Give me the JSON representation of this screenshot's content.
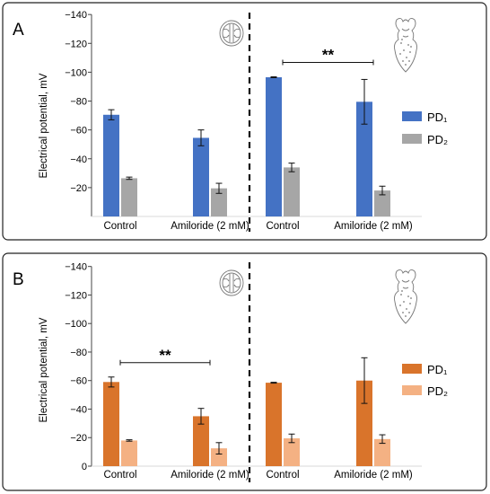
{
  "chart_data": [
    {
      "type": "bar",
      "panel_label": "A",
      "ylabel": "Electrical potential, mV",
      "y_ticks": [
        "−140",
        "−120",
        "−100",
        "−80",
        "−60",
        "−40",
        "−20"
      ],
      "ylim": [
        0,
        -140
      ],
      "groups": [
        {
          "categories": [
            "Control",
            "Amiloride (2 mM)"
          ]
        },
        {
          "categories": [
            "Control",
            "Amiloride (2 mM)"
          ]
        }
      ],
      "series": [
        {
          "name": "PD₁",
          "color": "#4472c4",
          "values": [
            -70.5,
            -54.5,
            -96.5,
            -79.5
          ],
          "errors": [
            3.5,
            5.5,
            0.3,
            15.5
          ]
        },
        {
          "name": "PD₂",
          "color": "#a6a6a6",
          "values": [
            -26.5,
            -19.5,
            -34,
            -18
          ],
          "errors": [
            0.8,
            3.5,
            3,
            3
          ]
        }
      ],
      "significance": [
        {
          "label": "**",
          "group": 2
        }
      ],
      "legend_position": "right",
      "icons": [
        "cross-section-icon",
        "larva-icon"
      ]
    },
    {
      "type": "bar",
      "panel_label": "B",
      "ylabel": "Electrical potential, mV",
      "y_ticks": [
        "−140",
        "−120",
        "−100",
        "−80",
        "−60",
        "−40",
        "−20",
        "0"
      ],
      "ylim": [
        0,
        -140
      ],
      "groups": [
        {
          "categories": [
            "Control",
            "Amiloride (2 mM)"
          ]
        },
        {
          "categories": [
            "Control",
            "Amiloride (2 mM)"
          ]
        }
      ],
      "series": [
        {
          "name": "PD₁",
          "color": "#d9742b",
          "values": [
            -59,
            -35,
            -58.5,
            -60
          ],
          "errors": [
            3.5,
            5.5,
            0.3,
            16
          ]
        },
        {
          "name": "PD₂",
          "color": "#f4b183",
          "values": [
            -18,
            -12.5,
            -19.5,
            -19
          ],
          "errors": [
            0.5,
            4,
            3,
            3
          ]
        }
      ],
      "significance": [
        {
          "label": "**",
          "group": 1
        }
      ],
      "legend_position": "right",
      "icons": [
        "cross-section-icon",
        "larva-icon"
      ]
    }
  ]
}
